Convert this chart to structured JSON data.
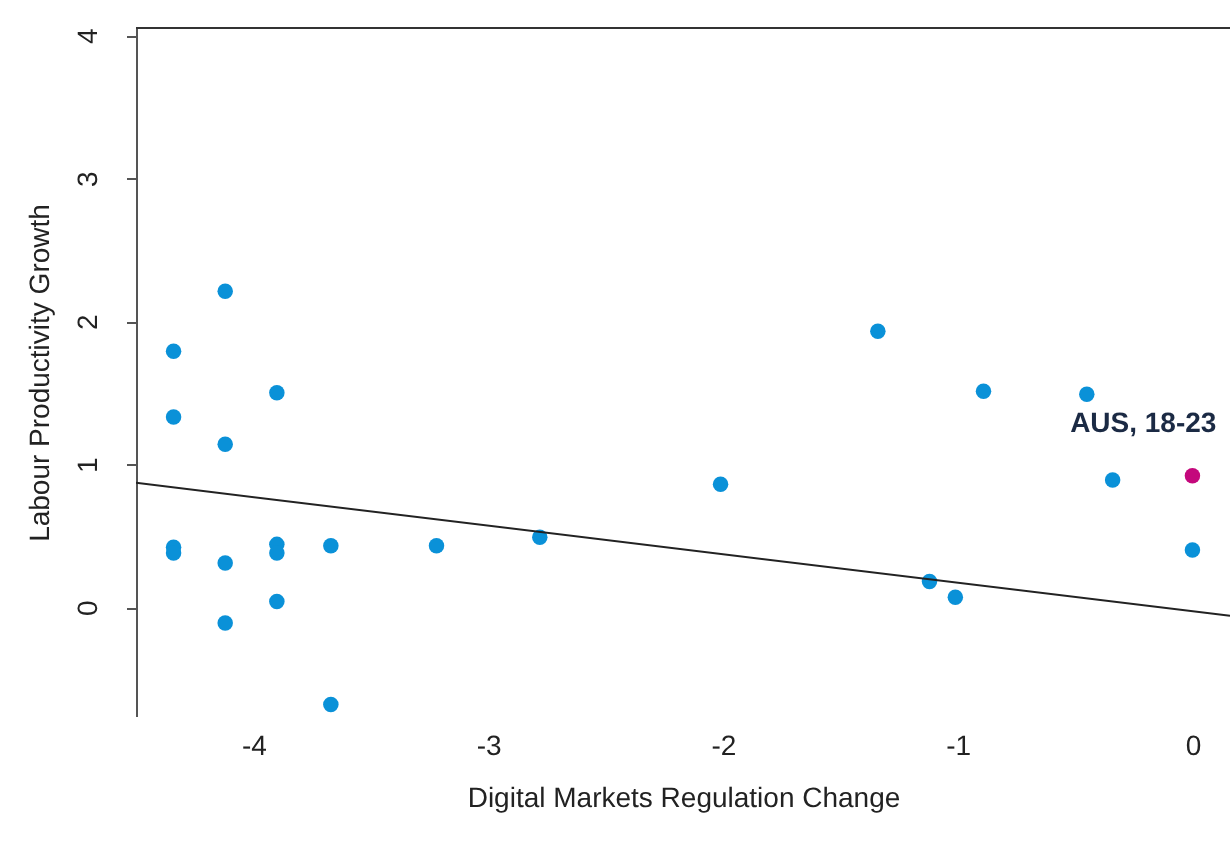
{
  "chart_data": {
    "type": "scatter",
    "xlabel": "Digital Markets Regulation Change",
    "ylabel": "Labour Productivity Growth",
    "xlim": [
      -4.5,
      0.16
    ],
    "ylim": [
      -0.76,
      4.05
    ],
    "xticks": [
      -4,
      -3,
      -2,
      -1,
      0
    ],
    "yticks": [
      0,
      1,
      2,
      3,
      4
    ],
    "grid": false,
    "marker": "circle",
    "series": [
      {
        "color": "#0a91d8",
        "x": [
          -4.12,
          -4.34,
          -3.9,
          -4.34,
          -4.12,
          -4.34,
          -4.34,
          -4.12,
          -3.9,
          -3.9,
          -3.67,
          -3.22,
          -2.78,
          -3.9,
          -4.12,
          -3.67,
          -1.34,
          -0.89,
          -0.45,
          -2.01,
          -0.34,
          0,
          -1.12,
          -1.01
        ],
        "values": [
          2.21,
          1.79,
          1.5,
          1.33,
          1.14,
          0.42,
          0.38,
          0.31,
          0.44,
          0.38,
          0.43,
          0.43,
          0.49,
          0.04,
          -0.11,
          -0.68,
          1.93,
          1.51,
          1.49,
          0.86,
          0.89,
          0.4,
          0.18,
          0.07
        ]
      },
      {
        "color": "#c4087c",
        "x": [
          0
        ],
        "values": [
          0.92
        ]
      },
      {
        "type": "line",
        "marker": "none",
        "color": "#222222",
        "x": [
          -4.5,
          0.16
        ],
        "values": [
          0.87,
          -0.06
        ]
      }
    ],
    "annotations": [
      {
        "text": "AUS, 18-23",
        "x": 0,
        "y": 0.92
      }
    ]
  }
}
